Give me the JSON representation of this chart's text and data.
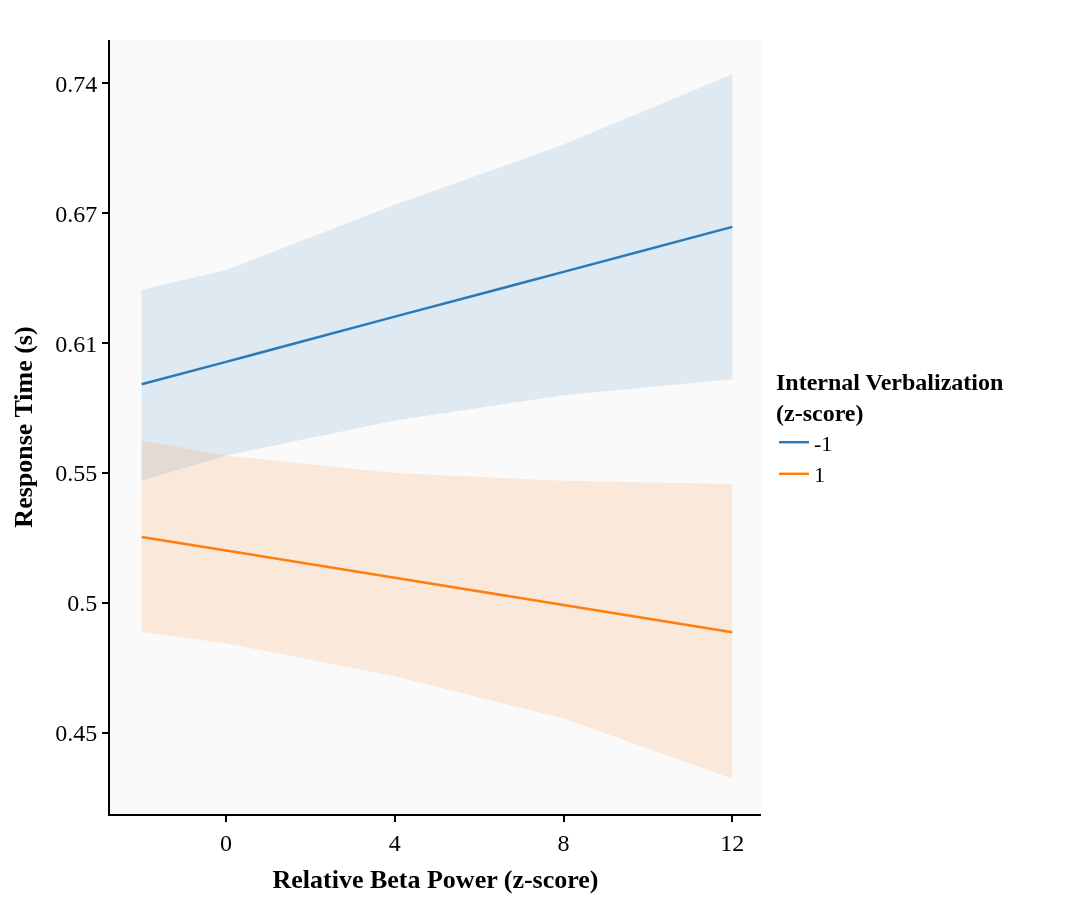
{
  "chart_data": {
    "type": "line",
    "xlabel": "Relative Beta Power (z-score)",
    "ylabel": "Response Time (s)",
    "legend_title": "Internal Verbalization\n(z-score)",
    "x": [
      -2,
      0,
      4,
      8,
      12
    ],
    "series": [
      {
        "name": "-1",
        "color": "#2a7ab9",
        "values": [
          0.5876,
          0.5978,
          0.619,
          0.6407,
          0.6633
        ],
        "lower": [
          0.5455,
          0.5562,
          0.5714,
          0.5826,
          0.5898
        ],
        "upper": [
          0.632,
          0.6416,
          0.6747,
          0.7067,
          0.746
        ]
      },
      {
        "name": "1",
        "color": "#ff7f0e",
        "values": [
          0.5224,
          0.517,
          0.5062,
          0.4957,
          0.4854
        ],
        "lower": [
          0.4854,
          0.4813,
          0.4692,
          0.4542,
          0.4336
        ],
        "upper": [
          0.5626,
          0.5562,
          0.5488,
          0.5455,
          0.5441
        ]
      }
    ],
    "log": "y",
    "xlim": [
      -2.75,
      12.68
    ],
    "ylim": [
      0.422,
      0.766
    ],
    "xticks": [
      0,
      4,
      8,
      12
    ],
    "yticks": [
      {
        "value": 0.4493,
        "label": "0.45"
      },
      {
        "value": 0.4966,
        "label": "0.5"
      },
      {
        "value": 0.5488,
        "label": "0.55"
      },
      {
        "value": 0.6065,
        "label": "0.61"
      },
      {
        "value": 0.6703,
        "label": "0.67"
      },
      {
        "value": 0.7408,
        "label": "0.74"
      }
    ],
    "legend": "right",
    "line_style": "solid",
    "marker": "none"
  }
}
